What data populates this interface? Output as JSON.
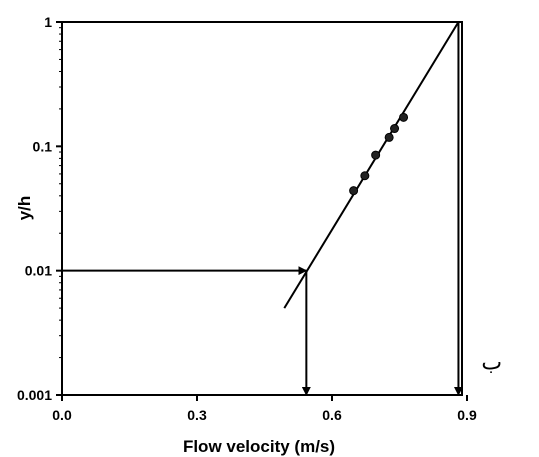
{
  "chart_data": {
    "type": "scatter",
    "xlabel": "Flow velocity (m/s)",
    "ylabel": "y/h",
    "xlim": [
      0.0,
      1.0
    ],
    "ylim": [
      0.001,
      1
    ],
    "yscale": "log",
    "grid": false,
    "xticks": [
      0.0,
      0.3,
      0.6,
      0.9
    ],
    "xtick_labels": [
      "0.0",
      "0.3",
      "0.6",
      "0.9"
    ],
    "yticks": [
      0.001,
      0.01,
      0.1,
      1
    ],
    "ytick_labels": [
      "0.001",
      "0.01",
      "0.1",
      "1"
    ],
    "series": [
      {
        "marker": "circle",
        "points": [
          {
            "x": 0.648,
            "y": 0.044
          },
          {
            "x": 0.673,
            "y": 0.058
          },
          {
            "x": 0.697,
            "y": 0.085
          },
          {
            "x": 0.727,
            "y": 0.118
          },
          {
            "x": 0.739,
            "y": 0.139
          },
          {
            "x": 0.759,
            "y": 0.171
          }
        ]
      }
    ],
    "fit_line": [
      {
        "x": 0.494,
        "y": 0.005
      },
      {
        "x": 0.881,
        "y": 1
      }
    ],
    "reference_arrows": [
      {
        "from": {
          "x": 0.0,
          "y": 0.01
        },
        "to": {
          "x": 0.543,
          "y": 0.01
        }
      },
      {
        "from": {
          "x": 0.543,
          "y": 0.01
        },
        "to": {
          "x": 0.543,
          "y": 0.001
        }
      },
      {
        "from": {
          "x": 0.881,
          "y": 1
        },
        "to": {
          "x": 0.881,
          "y": 0.001
        }
      }
    ],
    "annotations": [
      {
        "text": "ب",
        "x": 0.955,
        "y": 0.0016
      },
      {
        "text": "ب",
        "x": 1.11,
        "y": 0.003,
        "outside_plot": true
      }
    ]
  }
}
